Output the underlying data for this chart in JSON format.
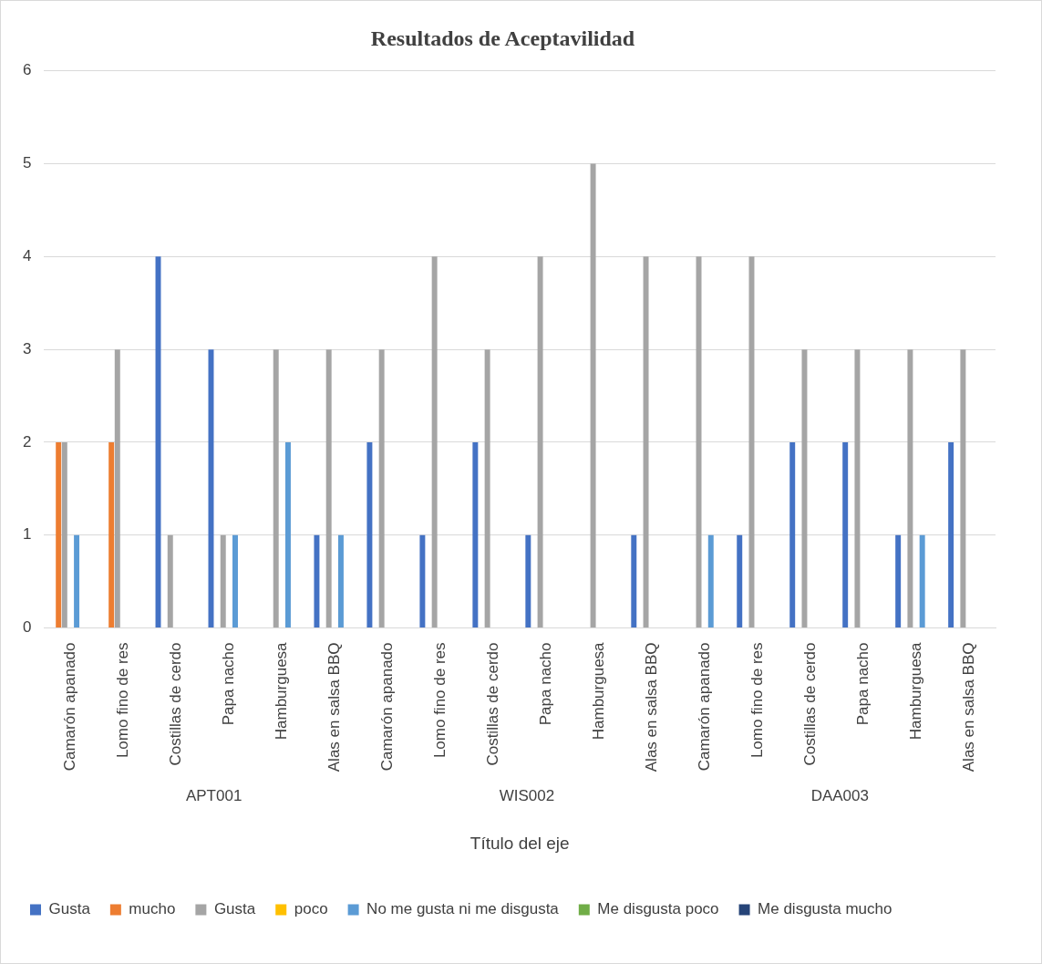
{
  "chart_data": {
    "type": "bar",
    "title": "Resultados de Aceptavilidad",
    "xlabel": "Título del eje",
    "categories": [
      "Camarón apanado",
      "Lomo fino de res",
      "Costillas de cerdo",
      "Papa nacho",
      "Hamburguesa",
      "Alas en salsa BBQ",
      "Camarón apanado",
      "Lomo fino de res",
      "Costillas de cerdo",
      "Papa nacho",
      "Hamburguesa",
      "Alas en salsa BBQ",
      "Camarón apanado",
      "Lomo fino de res",
      "Costillas de cerdo",
      "Papa nacho",
      "Hamburguesa",
      "Alas en salsa BBQ"
    ],
    "series": [
      {
        "name": "Gusta",
        "color": "#4472c4",
        "values": [
          0,
          0,
          4,
          3,
          0,
          1,
          2,
          1,
          2,
          1,
          0,
          1,
          0,
          1,
          2,
          2,
          1,
          2
        ]
      },
      {
        "name": "mucho",
        "color": "#ed7d31",
        "values": [
          2,
          2,
          0,
          0,
          0,
          0,
          0,
          0,
          0,
          0,
          0,
          0,
          0,
          0,
          0,
          0,
          0,
          0
        ]
      },
      {
        "name": "Gusta",
        "color": "#a5a5a5",
        "values": [
          2,
          3,
          1,
          1,
          3,
          3,
          3,
          4,
          3,
          4,
          5,
          4,
          4,
          4,
          3,
          3,
          3,
          3
        ]
      },
      {
        "name": "poco",
        "color": "#ffc000",
        "values": [
          0,
          0,
          0,
          0,
          0,
          0,
          0,
          0,
          0,
          0,
          0,
          0,
          0,
          0,
          0,
          0,
          0,
          0
        ]
      },
      {
        "name": "No me gusta ni me disgusta",
        "color": "#5b9bd5",
        "values": [
          1,
          0,
          0,
          1,
          2,
          1,
          0,
          0,
          0,
          0,
          0,
          0,
          1,
          0,
          0,
          0,
          1,
          0
        ]
      },
      {
        "name": "Me disgusta poco",
        "color": "#70ad47",
        "values": [
          0,
          0,
          0,
          0,
          0,
          0,
          0,
          0,
          0,
          0,
          0,
          0,
          0,
          0,
          0,
          0,
          0,
          0
        ]
      },
      {
        "name": "Me disgusta mucho",
        "color": "#264478",
        "values": [
          0,
          0,
          0,
          0,
          0,
          0,
          0,
          0,
          0,
          0,
          0,
          0,
          0,
          0,
          0,
          0,
          0,
          0
        ]
      }
    ],
    "annotations": [
      "APT001",
      "WIS002",
      "DAA003"
    ],
    "ylim": [
      0,
      6
    ],
    "yticks": [
      0,
      1,
      2,
      3,
      4,
      5,
      6
    ],
    "grid": "y",
    "legend": "bottom"
  }
}
